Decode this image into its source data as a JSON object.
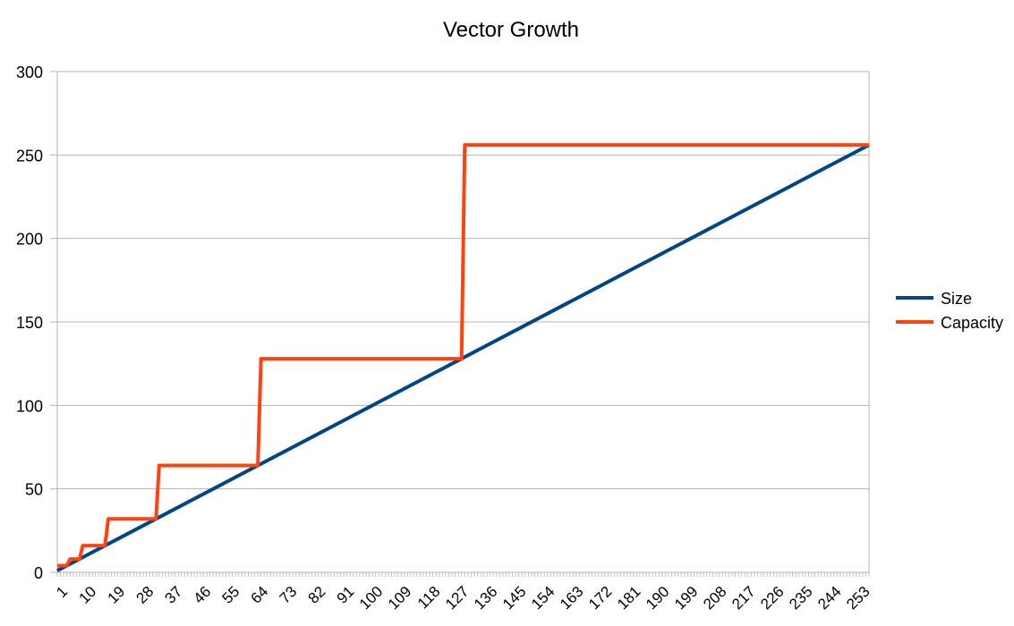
{
  "chart_data": {
    "type": "line",
    "title": "Vector Growth",
    "xlabel": "",
    "ylabel": "",
    "x_range": [
      1,
      256
    ],
    "x_tick_labels": [
      "1",
      "10",
      "19",
      "28",
      "37",
      "46",
      "55",
      "64",
      "73",
      "82",
      "91",
      "100",
      "109",
      "118",
      "127",
      "136",
      "145",
      "154",
      "163",
      "172",
      "181",
      "190",
      "199",
      "208",
      "217",
      "226",
      "235",
      "244",
      "253"
    ],
    "y_ticks": [
      0,
      50,
      100,
      150,
      200,
      250,
      300
    ],
    "ylim": [
      0,
      300
    ],
    "grid": true,
    "legend_position": "right",
    "series": [
      {
        "name": "Size",
        "color": "#004586",
        "shape": "size equals index (y = x)",
        "points": [
          [
            1,
            1
          ],
          [
            256,
            256
          ]
        ]
      },
      {
        "name": "Capacity",
        "color": "#ff420e",
        "shape": "step function, doubling",
        "steps": [
          {
            "from": 1,
            "to": 4,
            "value": 4
          },
          {
            "from": 5,
            "to": 8,
            "value": 8
          },
          {
            "from": 9,
            "to": 16,
            "value": 16
          },
          {
            "from": 17,
            "to": 32,
            "value": 32
          },
          {
            "from": 33,
            "to": 64,
            "value": 64
          },
          {
            "from": 65,
            "to": 128,
            "value": 128
          },
          {
            "from": 129,
            "to": 256,
            "value": 256
          }
        ]
      }
    ]
  }
}
